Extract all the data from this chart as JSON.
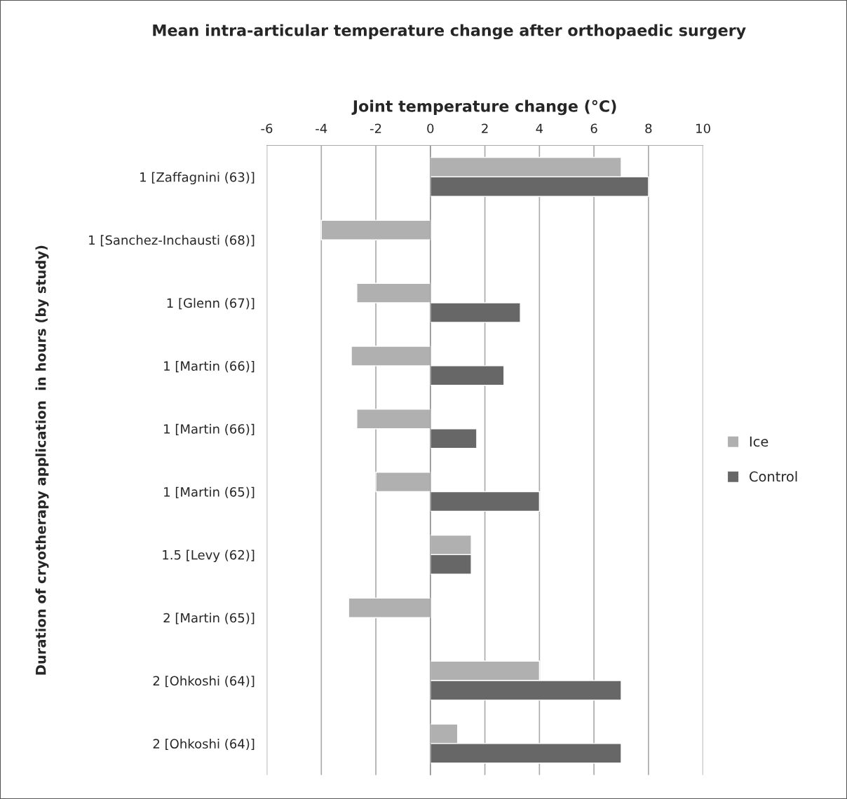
{
  "chart_data": {
    "type": "bar",
    "orientation": "horizontal",
    "title": "Mean intra-articular temperature change after orthopaedic surgery",
    "xlabel": "Joint temperature change (°C)",
    "ylabel": "Duration of cryotherapy application  in hours (by study)",
    "categories": [
      "1 [Zaffagnini (63)]",
      "1 [Sanchez-Inchausti (68)]",
      "1 [Glenn (67)]",
      "1 [Martin (66)]",
      "1 [Martin (66)]",
      "1 [Martin (65)]",
      "1.5 [Levy (62)]",
      "2 [Martin (65)]",
      "2 [Ohkoshi (64)]",
      "2 [Ohkoshi (64)]"
    ],
    "series": [
      {
        "name": "Ice",
        "color": "#b0b0b0",
        "values": [
          7,
          -4,
          -2.7,
          -2.9,
          -2.7,
          -2,
          1.5,
          -3,
          4,
          1
        ]
      },
      {
        "name": "Control",
        "color": "#676767",
        "values": [
          8,
          null,
          3.3,
          2.7,
          1.7,
          4,
          1.5,
          null,
          7,
          7
        ]
      }
    ],
    "xlim": [
      -6,
      10
    ],
    "xticks": [
      -6,
      -4,
      -2,
      0,
      2,
      4,
      6,
      8,
      10
    ],
    "grid": "x",
    "legend": "right"
  }
}
